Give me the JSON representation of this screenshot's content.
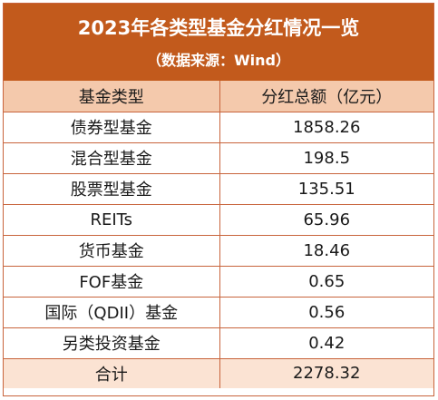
{
  "chart_data": {
    "type": "table",
    "title": "2023年各类型基金分红情况一览",
    "subtitle": "（数据来源：Wind）",
    "columns": [
      "基金类型",
      "分红总额（亿元）"
    ],
    "rows": [
      {
        "category": "债券型基金",
        "value": "1858.26"
      },
      {
        "category": "混合型基金",
        "value": "198.5"
      },
      {
        "category": "股票型基金",
        "value": "135.51"
      },
      {
        "category": "REITs",
        "value": "65.96"
      },
      {
        "category": "货币基金",
        "value": "18.46"
      },
      {
        "category": "FOF基金",
        "value": "0.65"
      },
      {
        "category": "国际（QDII）基金",
        "value": "0.56"
      },
      {
        "category": "另类投资基金",
        "value": "0.42"
      }
    ],
    "total": {
      "category": "合计",
      "value": "2278.32"
    }
  },
  "colors": {
    "header_bg": "#c25a1c",
    "column_header_bg": "#f4c9ac",
    "total_row_bg": "#fbe3d3",
    "border": "#c8643c"
  }
}
